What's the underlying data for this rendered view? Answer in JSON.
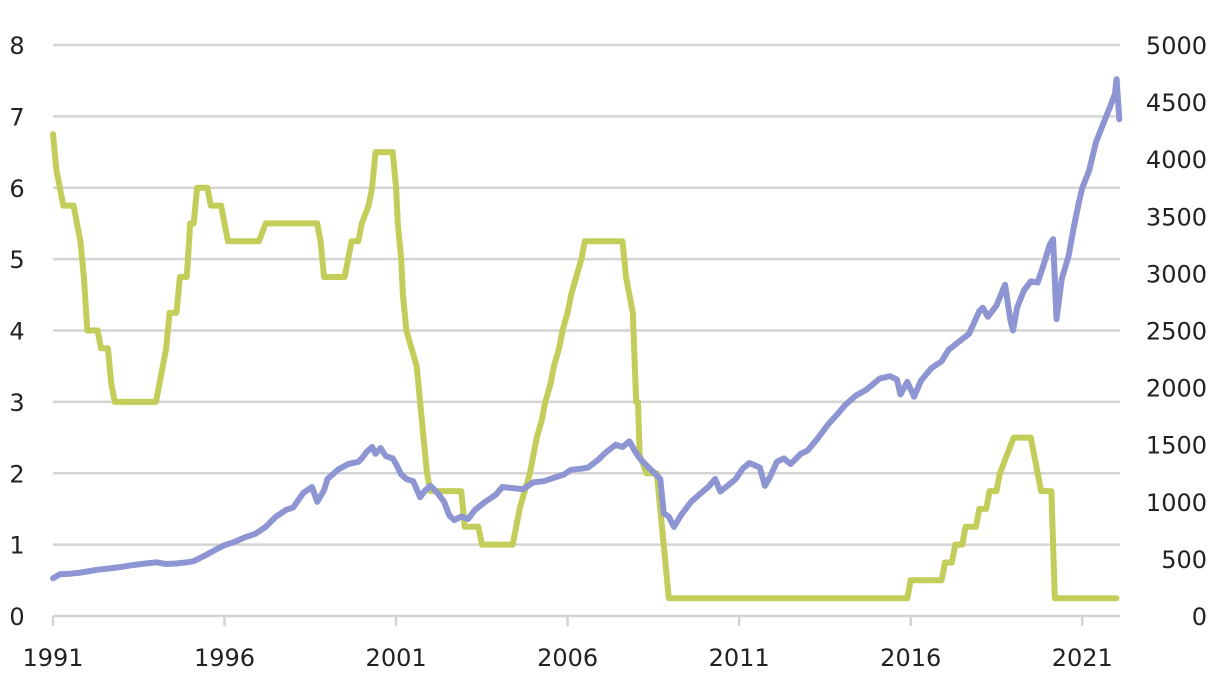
{
  "chart_data": {
    "type": "line",
    "title": "",
    "xlabel": "",
    "ylabel": "",
    "x_ticks": [
      1991,
      1996,
      2001,
      2006,
      2011,
      2016,
      2021
    ],
    "xlim": [
      1991,
      2022.1
    ],
    "y_left": {
      "ticks": [
        0,
        1,
        2,
        3,
        4,
        5,
        6,
        7,
        8
      ],
      "lim": [
        0,
        8
      ]
    },
    "y_right": {
      "ticks": [
        0,
        500,
        1000,
        1500,
        2000,
        2500,
        3000,
        3500,
        4000,
        4500,
        5000
      ],
      "lim": [
        0,
        5000
      ]
    },
    "grid": true,
    "legend": "none",
    "series": [
      {
        "axis": "left",
        "color": "#c3cd5a",
        "points": [
          [
            1991.0,
            6.75
          ],
          [
            1991.1,
            6.25
          ],
          [
            1991.3,
            5.75
          ],
          [
            1991.6,
            5.75
          ],
          [
            1991.8,
            5.25
          ],
          [
            1991.9,
            4.75
          ],
          [
            1992.0,
            4.0
          ],
          [
            1992.3,
            4.0
          ],
          [
            1992.4,
            3.75
          ],
          [
            1992.6,
            3.75
          ],
          [
            1992.7,
            3.25
          ],
          [
            1992.8,
            3.0
          ],
          [
            1993.0,
            3.0
          ],
          [
            1993.5,
            3.0
          ],
          [
            1994.0,
            3.0
          ],
          [
            1994.1,
            3.25
          ],
          [
            1994.3,
            3.75
          ],
          [
            1994.4,
            4.25
          ],
          [
            1994.6,
            4.25
          ],
          [
            1994.7,
            4.75
          ],
          [
            1994.9,
            4.75
          ],
          [
            1995.0,
            5.5
          ],
          [
            1995.1,
            5.5
          ],
          [
            1995.2,
            6.0
          ],
          [
            1995.5,
            6.0
          ],
          [
            1995.6,
            5.75
          ],
          [
            1995.9,
            5.75
          ],
          [
            1996.0,
            5.5
          ],
          [
            1996.1,
            5.25
          ],
          [
            1996.5,
            5.25
          ],
          [
            1997.0,
            5.25
          ],
          [
            1997.2,
            5.5
          ],
          [
            1997.6,
            5.5
          ],
          [
            1998.0,
            5.5
          ],
          [
            1998.4,
            5.5
          ],
          [
            1998.7,
            5.5
          ],
          [
            1998.8,
            5.25
          ],
          [
            1998.9,
            4.75
          ],
          [
            1999.5,
            4.75
          ],
          [
            1999.6,
            5.0
          ],
          [
            1999.7,
            5.25
          ],
          [
            1999.9,
            5.25
          ],
          [
            2000.0,
            5.5
          ],
          [
            2000.2,
            5.75
          ],
          [
            2000.3,
            6.0
          ],
          [
            2000.4,
            6.5
          ],
          [
            2000.9,
            6.5
          ],
          [
            2001.0,
            6.0
          ],
          [
            2001.05,
            5.5
          ],
          [
            2001.15,
            5.0
          ],
          [
            2001.2,
            4.5
          ],
          [
            2001.3,
            4.0
          ],
          [
            2001.45,
            3.75
          ],
          [
            2001.6,
            3.5
          ],
          [
            2001.7,
            3.0
          ],
          [
            2001.8,
            2.5
          ],
          [
            2001.9,
            2.0
          ],
          [
            2002.0,
            1.75
          ],
          [
            2002.5,
            1.75
          ],
          [
            2002.9,
            1.75
          ],
          [
            2003.0,
            1.25
          ],
          [
            2003.4,
            1.25
          ],
          [
            2003.5,
            1.0
          ],
          [
            2004.0,
            1.0
          ],
          [
            2004.4,
            1.0
          ],
          [
            2004.5,
            1.25
          ],
          [
            2004.6,
            1.5
          ],
          [
            2004.75,
            1.75
          ],
          [
            2004.9,
            2.0
          ],
          [
            2005.0,
            2.25
          ],
          [
            2005.1,
            2.5
          ],
          [
            2005.25,
            2.75
          ],
          [
            2005.35,
            3.0
          ],
          [
            2005.5,
            3.25
          ],
          [
            2005.6,
            3.5
          ],
          [
            2005.75,
            3.75
          ],
          [
            2005.85,
            4.0
          ],
          [
            2006.0,
            4.25
          ],
          [
            2006.1,
            4.5
          ],
          [
            2006.25,
            4.75
          ],
          [
            2006.4,
            5.0
          ],
          [
            2006.5,
            5.25
          ],
          [
            2007.0,
            5.25
          ],
          [
            2007.6,
            5.25
          ],
          [
            2007.7,
            4.75
          ],
          [
            2007.8,
            4.5
          ],
          [
            2007.9,
            4.25
          ],
          [
            2008.0,
            3.0
          ],
          [
            2008.05,
            3.0
          ],
          [
            2008.1,
            2.25
          ],
          [
            2008.3,
            2.0
          ],
          [
            2008.6,
            2.0
          ],
          [
            2008.8,
            1.0
          ],
          [
            2008.95,
            0.25
          ],
          [
            2010.0,
            0.25
          ],
          [
            2011.0,
            0.25
          ],
          [
            2012.0,
            0.25
          ],
          [
            2013.0,
            0.25
          ],
          [
            2014.0,
            0.25
          ],
          [
            2015.0,
            0.25
          ],
          [
            2015.9,
            0.25
          ],
          [
            2016.0,
            0.5
          ],
          [
            2016.9,
            0.5
          ],
          [
            2017.0,
            0.75
          ],
          [
            2017.2,
            0.75
          ],
          [
            2017.3,
            1.0
          ],
          [
            2017.5,
            1.0
          ],
          [
            2017.6,
            1.25
          ],
          [
            2017.9,
            1.25
          ],
          [
            2018.0,
            1.5
          ],
          [
            2018.2,
            1.5
          ],
          [
            2018.3,
            1.75
          ],
          [
            2018.5,
            1.75
          ],
          [
            2018.6,
            2.0
          ],
          [
            2018.8,
            2.25
          ],
          [
            2019.0,
            2.5
          ],
          [
            2019.5,
            2.5
          ],
          [
            2019.6,
            2.25
          ],
          [
            2019.7,
            2.0
          ],
          [
            2019.8,
            1.75
          ],
          [
            2020.1,
            1.75
          ],
          [
            2020.2,
            0.25
          ],
          [
            2021.0,
            0.25
          ],
          [
            2022.0,
            0.25
          ]
        ]
      },
      {
        "axis": "right",
        "color": "#8d95d3",
        "points": [
          [
            1991.0,
            330
          ],
          [
            1991.2,
            365
          ],
          [
            1991.5,
            370
          ],
          [
            1991.8,
            380
          ],
          [
            1992.0,
            390
          ],
          [
            1992.3,
            405
          ],
          [
            1992.6,
            415
          ],
          [
            1993.0,
            430
          ],
          [
            1993.3,
            445
          ],
          [
            1993.7,
            460
          ],
          [
            1994.0,
            470
          ],
          [
            1994.3,
            455
          ],
          [
            1994.6,
            460
          ],
          [
            1994.9,
            470
          ],
          [
            1995.1,
            480
          ],
          [
            1995.5,
            540
          ],
          [
            1995.8,
            590
          ],
          [
            1996.0,
            620
          ],
          [
            1996.3,
            650
          ],
          [
            1996.6,
            690
          ],
          [
            1996.9,
            720
          ],
          [
            1997.2,
            780
          ],
          [
            1997.5,
            870
          ],
          [
            1997.8,
            930
          ],
          [
            1998.0,
            950
          ],
          [
            1998.3,
            1080
          ],
          [
            1998.55,
            1130
          ],
          [
            1998.7,
            1000
          ],
          [
            1998.9,
            1100
          ],
          [
            1999.0,
            1200
          ],
          [
            1999.3,
            1280
          ],
          [
            1999.6,
            1330
          ],
          [
            1999.9,
            1350
          ],
          [
            2000.0,
            1380
          ],
          [
            2000.15,
            1440
          ],
          [
            2000.3,
            1480
          ],
          [
            2000.4,
            1420
          ],
          [
            2000.55,
            1470
          ],
          [
            2000.7,
            1400
          ],
          [
            2000.9,
            1380
          ],
          [
            2001.0,
            1330
          ],
          [
            2001.15,
            1240
          ],
          [
            2001.3,
            1200
          ],
          [
            2001.5,
            1180
          ],
          [
            2001.7,
            1040
          ],
          [
            2001.85,
            1100
          ],
          [
            2002.0,
            1140
          ],
          [
            2002.2,
            1080
          ],
          [
            2002.4,
            1000
          ],
          [
            2002.55,
            880
          ],
          [
            2002.7,
            840
          ],
          [
            2002.9,
            870
          ],
          [
            2003.1,
            850
          ],
          [
            2003.3,
            930
          ],
          [
            2003.6,
            1000
          ],
          [
            2003.9,
            1060
          ],
          [
            2004.1,
            1130
          ],
          [
            2004.4,
            1120
          ],
          [
            2004.7,
            1110
          ],
          [
            2005.0,
            1170
          ],
          [
            2005.3,
            1180
          ],
          [
            2005.6,
            1210
          ],
          [
            2005.9,
            1240
          ],
          [
            2006.1,
            1280
          ],
          [
            2006.4,
            1290
          ],
          [
            2006.6,
            1300
          ],
          [
            2006.9,
            1370
          ],
          [
            2007.1,
            1430
          ],
          [
            2007.4,
            1500
          ],
          [
            2007.6,
            1480
          ],
          [
            2007.8,
            1530
          ],
          [
            2007.95,
            1450
          ],
          [
            2008.1,
            1380
          ],
          [
            2008.3,
            1320
          ],
          [
            2008.5,
            1260
          ],
          [
            2008.7,
            1200
          ],
          [
            2008.8,
            900
          ],
          [
            2008.95,
            870
          ],
          [
            2009.1,
            780
          ],
          [
            2009.3,
            880
          ],
          [
            2009.6,
            1000
          ],
          [
            2009.9,
            1080
          ],
          [
            2010.1,
            1130
          ],
          [
            2010.3,
            1200
          ],
          [
            2010.45,
            1090
          ],
          [
            2010.7,
            1150
          ],
          [
            2010.9,
            1200
          ],
          [
            2011.1,
            1290
          ],
          [
            2011.3,
            1340
          ],
          [
            2011.6,
            1300
          ],
          [
            2011.75,
            1140
          ],
          [
            2011.9,
            1220
          ],
          [
            2012.1,
            1350
          ],
          [
            2012.3,
            1380
          ],
          [
            2012.5,
            1330
          ],
          [
            2012.8,
            1420
          ],
          [
            2013.0,
            1450
          ],
          [
            2013.3,
            1560
          ],
          [
            2013.6,
            1680
          ],
          [
            2013.9,
            1780
          ],
          [
            2014.1,
            1850
          ],
          [
            2014.4,
            1930
          ],
          [
            2014.7,
            1980
          ],
          [
            2014.9,
            2030
          ],
          [
            2015.1,
            2080
          ],
          [
            2015.4,
            2100
          ],
          [
            2015.6,
            2070
          ],
          [
            2015.7,
            1940
          ],
          [
            2015.9,
            2050
          ],
          [
            2016.1,
            1920
          ],
          [
            2016.3,
            2060
          ],
          [
            2016.6,
            2170
          ],
          [
            2016.9,
            2230
          ],
          [
            2017.1,
            2330
          ],
          [
            2017.4,
            2400
          ],
          [
            2017.7,
            2470
          ],
          [
            2018.0,
            2670
          ],
          [
            2018.1,
            2700
          ],
          [
            2018.25,
            2620
          ],
          [
            2018.5,
            2720
          ],
          [
            2018.75,
            2900
          ],
          [
            2018.9,
            2600
          ],
          [
            2018.98,
            2500
          ],
          [
            2019.1,
            2700
          ],
          [
            2019.3,
            2850
          ],
          [
            2019.5,
            2930
          ],
          [
            2019.7,
            2920
          ],
          [
            2019.9,
            3100
          ],
          [
            2020.05,
            3250
          ],
          [
            2020.15,
            3300
          ],
          [
            2020.25,
            2600
          ],
          [
            2020.4,
            2950
          ],
          [
            2020.6,
            3150
          ],
          [
            2020.75,
            3400
          ],
          [
            2020.9,
            3620
          ],
          [
            2021.0,
            3750
          ],
          [
            2021.2,
            3900
          ],
          [
            2021.4,
            4150
          ],
          [
            2021.6,
            4300
          ],
          [
            2021.8,
            4450
          ],
          [
            2021.95,
            4570
          ],
          [
            2022.0,
            4700
          ],
          [
            2022.08,
            4350
          ]
        ]
      }
    ]
  }
}
